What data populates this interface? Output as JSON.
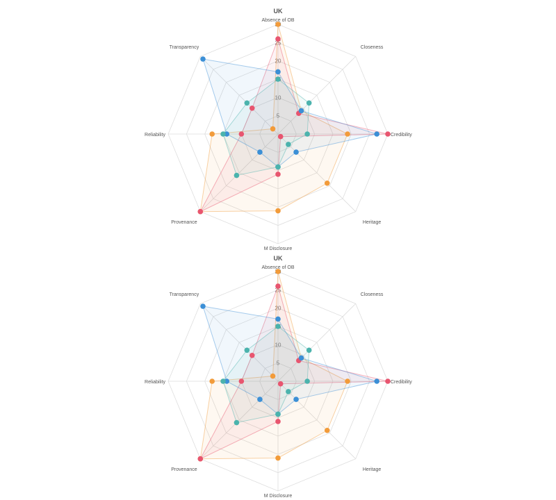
{
  "chart_data": [
    {
      "type": "radar",
      "title": "UK",
      "labels": [
        "Absence of OB",
        "Closeness",
        "Credibility",
        "Heritage",
        "M Disclosure",
        "Provenance",
        "Reliability",
        "Transparency"
      ],
      "rlim": [
        0,
        30
      ],
      "ticks": [
        5,
        10,
        15,
        20,
        25,
        30
      ],
      "grid": true,
      "legend": "none",
      "series": [
        {
          "color": "#f29b3a",
          "values": [
            30,
            9,
            19,
            19,
            21,
            30,
            18,
            2
          ]
        },
        {
          "color": "#e8556f",
          "values": [
            26,
            8,
            30,
            1,
            11,
            30,
            10,
            10
          ]
        },
        {
          "color": "#3b8fd6",
          "values": [
            17,
            9,
            27,
            7,
            9,
            7,
            14,
            29
          ]
        },
        {
          "color": "#4bb3ad",
          "values": [
            15,
            12,
            8,
            4,
            9,
            16,
            15,
            12
          ]
        }
      ]
    },
    {
      "type": "radar",
      "title": "UK",
      "labels": [
        "Absence of OB",
        "Closeness",
        "Credibility",
        "Heritage",
        "M Disclosure",
        "Provenance",
        "Reliability",
        "Transparency"
      ],
      "rlim": [
        0,
        30
      ],
      "ticks": [
        5,
        10,
        15,
        20,
        25,
        30
      ],
      "grid": true,
      "legend": "none",
      "series": [
        {
          "color": "#f29b3a",
          "values": [
            30,
            9,
            19,
            19,
            21,
            30,
            18,
            2
          ]
        },
        {
          "color": "#e8556f",
          "values": [
            26,
            8,
            30,
            1,
            11,
            30,
            10,
            10
          ]
        },
        {
          "color": "#3b8fd6",
          "values": [
            17,
            9,
            27,
            7,
            9,
            7,
            14,
            29
          ]
        },
        {
          "color": "#4bb3ad",
          "values": [
            15,
            12,
            8,
            4,
            9,
            16,
            15,
            12
          ]
        }
      ]
    }
  ]
}
